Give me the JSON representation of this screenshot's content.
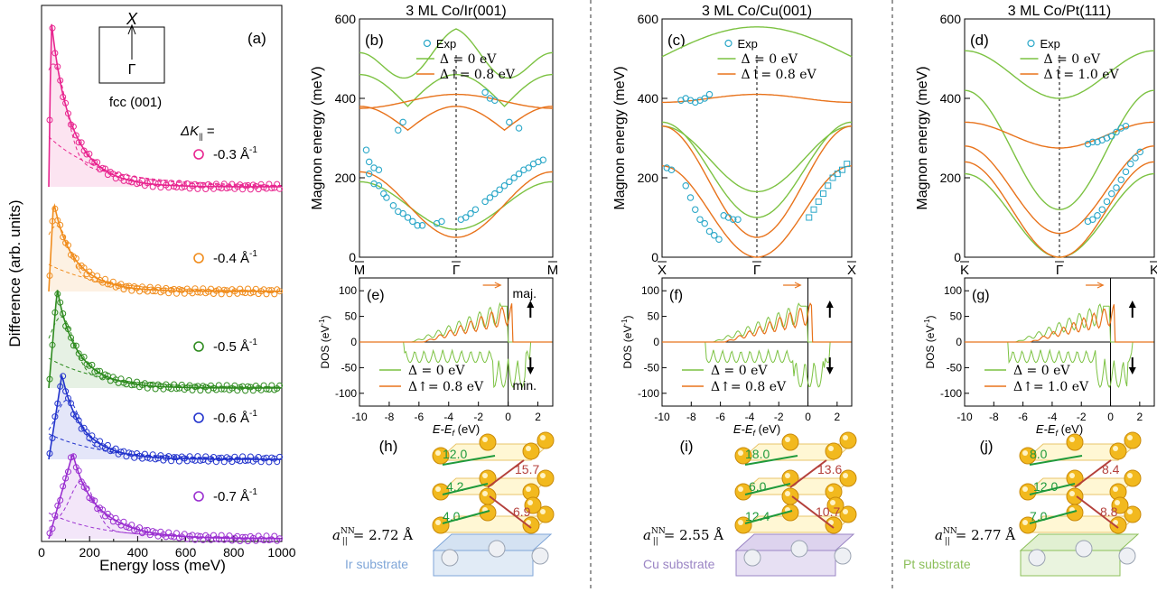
{
  "colors": {
    "pink": "#e8258f",
    "orange": "#f08c1c",
    "green": "#2e8b1f",
    "blue": "#2233cc",
    "purple": "#9a2fd0",
    "cyan": "#2aa7c8",
    "lgreen": "#7cc242",
    "dorange": "#e8731c",
    "dashed": "#555555"
  },
  "panel_a": {
    "ylabel": "Difference (arb. units)",
    "xlabel": "Energy loss (meV)",
    "letter": "(a)",
    "xticks": [
      "0",
      "200",
      "400",
      "600",
      "800",
      "1000"
    ],
    "inset_top": "X",
    "inset_bottom": "Γ",
    "inset_caption": "fcc (001)",
    "dk_label": "ΔK",
    "dk_sub": "||",
    "dk_eq": " =",
    "series": [
      {
        "label": "-0.3 Å",
        "sup": "-1",
        "color": "pink"
      },
      {
        "label": "-0.4 Å",
        "sup": "-1",
        "color": "orange"
      },
      {
        "label": "-0.5 Å",
        "sup": "-1",
        "color": "green"
      },
      {
        "label": "-0.6 Å",
        "sup": "-1",
        "color": "blue"
      },
      {
        "label": "-0.7 Å",
        "sup": "-1",
        "color": "purple"
      }
    ]
  },
  "top_ylabel": "Magnon energy (meV)",
  "dos_ylabel": "DOS (eV",
  "dos_ylabel_sup": "-1",
  "dos_ylabel_end": ")",
  "dos_xlabel": "E-E",
  "dos_xlabel_sub": "f",
  "dos_xlabel_end": " (eV)",
  "dos_xticks": [
    "-10",
    "-8",
    "-6",
    "-4",
    "-2",
    "0",
    "2"
  ],
  "dos_yticks": [
    "100",
    "50",
    "0",
    "-50",
    "-100"
  ],
  "top_yticks": [
    "0",
    "200",
    "400",
    "600"
  ],
  "legend_delta0": "Δ = 0 eV",
  "legend_exp": "Exp",
  "panels": [
    {
      "title": "3 ML Co/Ir(001)",
      "letter": "(b)",
      "dos_letter": "(e)",
      "struct_letter": "(h)",
      "k_left": "M",
      "k_mid": "Γ",
      "k_right": "M",
      "delta_up": "Δ↑= 0.8 eV",
      "maj": "maj.",
      "min": "min.",
      "bonds": [
        "12.0",
        "4.2",
        "15.7",
        "4.0",
        "6.9"
      ],
      "ann": "a",
      "ann_sup": "NN",
      "ann_sub": "||",
      "ann_val": "= 2.72 Å",
      "substrate": "Ir substrate"
    },
    {
      "title": "3 ML Co/Cu(001)",
      "letter": "(c)",
      "dos_letter": "(f)",
      "struct_letter": "(i)",
      "k_left": "X",
      "k_mid": "Γ",
      "k_right": "X",
      "delta_up": "Δ↑= 0.8 eV",
      "bonds": [
        "18.0",
        "6.0",
        "13.6",
        "12.4",
        "10.7"
      ],
      "ann": "a",
      "ann_sup": "NN",
      "ann_sub": "||",
      "ann_val": "= 2.55 Å",
      "substrate": "Cu substrate"
    },
    {
      "title": "3 ML Co/Pt(111)",
      "letter": "(d)",
      "dos_letter": "(g)",
      "struct_letter": "(j)",
      "k_left": "K",
      "k_mid": "Γ",
      "k_right": "K",
      "delta_up": "Δ↑= 1.0 eV",
      "bonds": [
        "8.0",
        "12.0",
        "8.4",
        "7.0",
        "8.8"
      ],
      "ann": "a",
      "ann_sup": "NN",
      "ann_sub": "||",
      "ann_val": "= 2.77 Å",
      "substrate": "Pt substrate"
    }
  ],
  "chart_data": [
    {
      "type": "line",
      "id": "a",
      "title": "",
      "xlabel": "Energy loss (meV)",
      "ylabel": "Difference (arb. units)",
      "xlim": [
        0,
        1000
      ],
      "series": [
        {
          "name": "-0.3 Å-1",
          "peak_energy": 40,
          "x": [
            40,
            100,
            150,
            200,
            300,
            400,
            600,
            1000
          ],
          "values": [
            1.0,
            0.45,
            0.35,
            0.25,
            0.12,
            0.07,
            0.03,
            0.0
          ]
        },
        {
          "name": "-0.4 Å-1",
          "peak_energy": 50,
          "x": [
            50,
            100,
            150,
            200,
            300,
            400,
            600,
            1000
          ],
          "values": [
            1.0,
            0.6,
            0.45,
            0.3,
            0.15,
            0.08,
            0.03,
            0.0
          ]
        },
        {
          "name": "-0.5 Å-1",
          "peak_energy": 65,
          "x": [
            65,
            100,
            150,
            200,
            300,
            400,
            600,
            1000
          ],
          "values": [
            1.0,
            0.7,
            0.55,
            0.4,
            0.2,
            0.12,
            0.05,
            0.0
          ]
        },
        {
          "name": "-0.6 Å-1",
          "peak_energy": 85,
          "x": [
            85,
            120,
            150,
            200,
            300,
            400,
            600,
            1000
          ],
          "values": [
            1.0,
            0.85,
            0.7,
            0.5,
            0.3,
            0.18,
            0.08,
            0.0
          ]
        },
        {
          "name": "-0.7 Å-1",
          "peak_energy": 130,
          "x": [
            60,
            130,
            200,
            250,
            300,
            400,
            600,
            1000
          ],
          "values": [
            0.6,
            1.0,
            0.8,
            0.6,
            0.4,
            0.2,
            0.08,
            0.0
          ]
        }
      ]
    },
    {
      "type": "scatter",
      "id": "b",
      "title": "3 ML Co/Ir(001)",
      "ylabel": "Magnon energy (meV)",
      "ylim": [
        0,
        600
      ],
      "x_ticks": [
        "M",
        "Γ",
        "M"
      ],
      "exp": {
        "x": [
          -0.93,
          -0.9,
          -0.85,
          -0.8,
          -0.75,
          -0.72,
          -0.65,
          -0.6,
          -0.55,
          -0.5,
          -0.45,
          -0.4,
          -0.35,
          -0.2,
          -0.15,
          0.05,
          0.1,
          0.15,
          0.2,
          0.3,
          0.35,
          0.4,
          0.45,
          0.5,
          0.55,
          0.6,
          0.65,
          0.7,
          0.75,
          0.8,
          0.85,
          0.9,
          -0.9,
          -0.85,
          -0.8,
          -0.6,
          -0.55,
          0.3,
          0.35,
          0.4,
          0.55,
          0.65
        ],
        "values": [
          270,
          210,
          185,
          180,
          160,
          150,
          130,
          115,
          110,
          100,
          90,
          80,
          80,
          85,
          90,
          95,
          100,
          110,
          120,
          140,
          150,
          160,
          170,
          180,
          190,
          200,
          210,
          220,
          225,
          235,
          240,
          245,
          240,
          225,
          220,
          320,
          340,
          415,
          400,
          395,
          340,
          325
        ]
      },
      "theory": [
        {
          "name": "Δ = 0 eV",
          "color": "lightgreen"
        },
        {
          "name": "Δ↑= 0.8 eV",
          "color": "orange"
        }
      ]
    },
    {
      "type": "scatter",
      "id": "c",
      "title": "3 ML Co/Cu(001)",
      "ylabel": "Magnon energy (meV)",
      "ylim": [
        0,
        600
      ],
      "x_ticks": [
        "X",
        "Γ",
        "X"
      ],
      "exp": {
        "x": [
          -0.95,
          -0.9,
          -0.75,
          -0.7,
          -0.65,
          -0.6,
          -0.55,
          -0.5,
          -0.45,
          -0.4,
          -0.35,
          -0.3,
          -0.25,
          -0.2,
          0.55,
          0.6,
          0.65,
          0.7,
          0.75,
          0.8,
          0.85,
          0.9,
          0.95,
          -0.8,
          -0.75,
          -0.7,
          -0.65,
          -0.6,
          -0.55,
          -0.5
        ],
        "values": [
          225,
          220,
          180,
          150,
          120,
          95,
          85,
          65,
          55,
          45,
          105,
          100,
          95,
          95,
          100,
          120,
          140,
          160,
          180,
          200,
          210,
          220,
          235,
          395,
          400,
          395,
          390,
          395,
          400,
          410
        ]
      },
      "theory": [
        {
          "name": "Δ = 0 eV",
          "color": "lightgreen"
        },
        {
          "name": "Δ↑= 0.8 eV",
          "color": "orange"
        }
      ]
    },
    {
      "type": "scatter",
      "id": "d",
      "title": "3 ML Co/Pt(111)",
      "ylabel": "Magnon energy (meV)",
      "ylim": [
        0,
        600
      ],
      "x_ticks": [
        "K",
        "Γ",
        "K"
      ],
      "exp": {
        "x": [
          0.3,
          0.35,
          0.4,
          0.45,
          0.5,
          0.55,
          0.6,
          0.65,
          0.7,
          0.75,
          0.8,
          0.85,
          0.3,
          0.35,
          0.4,
          0.45,
          0.5,
          0.55,
          0.6,
          0.65,
          0.7
        ],
        "values": [
          90,
          95,
          105,
          120,
          140,
          160,
          175,
          195,
          215,
          235,
          250,
          265,
          285,
          290,
          290,
          295,
          300,
          305,
          315,
          325,
          330
        ]
      },
      "theory": [
        {
          "name": "Δ = 0 eV",
          "color": "lightgreen"
        },
        {
          "name": "Δ↑= 1.0 eV",
          "color": "orange"
        }
      ]
    },
    {
      "type": "line",
      "id": "e",
      "ylabel": "DOS (eV-1)",
      "xlabel": "E-Ef (eV)",
      "xlim": [
        -10,
        3
      ],
      "ylim": [
        -125,
        125
      ],
      "series": [
        {
          "name": "Δ = 0 eV"
        },
        {
          "name": "Δ↑= 0.8 eV"
        }
      ]
    },
    {
      "type": "line",
      "id": "f",
      "ylabel": "DOS (eV-1)",
      "xlabel": "E-Ef (eV)",
      "xlim": [
        -10,
        3
      ],
      "ylim": [
        -125,
        125
      ],
      "series": [
        {
          "name": "Δ = 0 eV"
        },
        {
          "name": "Δ↑= 0.8 eV"
        }
      ]
    },
    {
      "type": "line",
      "id": "g",
      "ylabel": "DOS (eV-1)",
      "xlabel": "E-Ef (eV)",
      "xlim": [
        -10,
        3
      ],
      "ylim": [
        -125,
        125
      ],
      "series": [
        {
          "name": "Δ = 0 eV"
        },
        {
          "name": "Δ↑= 1.0 eV"
        }
      ]
    }
  ]
}
